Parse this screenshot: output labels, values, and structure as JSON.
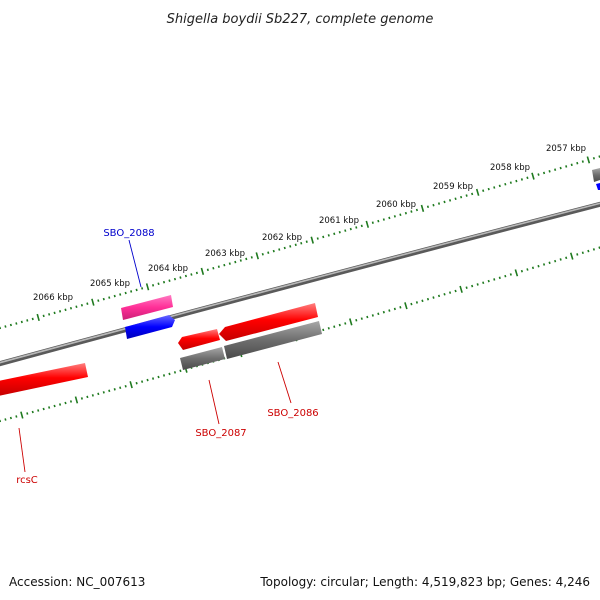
{
  "title": "Shigella boydii Sb227, complete genome",
  "footer": {
    "accession": "Accession: NC_007613",
    "summary": "Topology: circular; Length: 4,519,823 bp; Genes: 4,246"
  },
  "kbp_labels": [
    "2057 kbp",
    "2058 kbp",
    "2059 kbp",
    "2060 kbp",
    "2061 kbp",
    "2062 kbp",
    "2063 kbp",
    "2064 kbp",
    "2065 kbp",
    "2066 kbp"
  ],
  "gene_labels": {
    "sbo_2088": "SBO_2088",
    "sbo_2087": "SBO_2087",
    "sbo_2086": "SBO_2086",
    "rcsc": "rcsC"
  },
  "colors": {
    "backbone": "#8a8a8a",
    "tick": "#1f7a1f",
    "cds": "#ff0000",
    "pseudo": "#ff3c9b",
    "blue_cds": "#0000ff",
    "gene_grey": "#6e6e6e",
    "label_blue": "#0000cc",
    "label_red": "#cc0000"
  }
}
